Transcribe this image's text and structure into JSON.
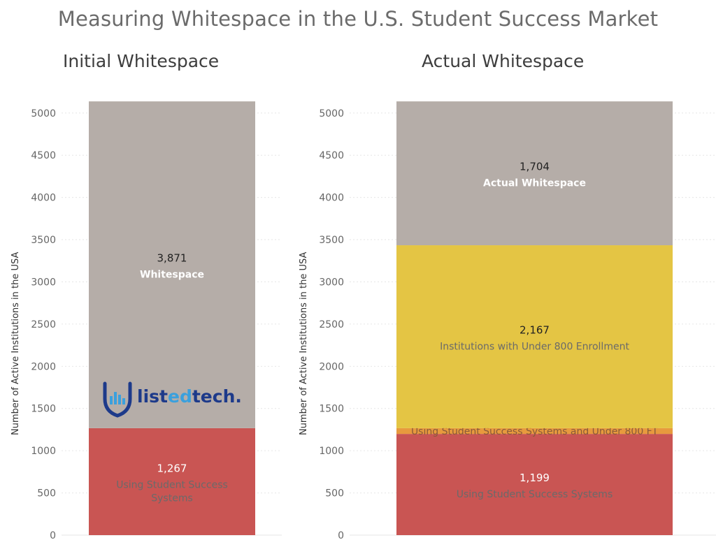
{
  "title": "Measuring Whitespace in the U.S. Student Success Market",
  "logo": {
    "part1": "list",
    "part2": "ed",
    "part3": "tech",
    "part4": "."
  },
  "colors": {
    "whitespace": "#b5ada8",
    "under800": "#e4c544",
    "overlap": "#e79a3e",
    "using": "#c95553"
  },
  "chart_data": [
    {
      "type": "bar",
      "title": "Initial Whitespace",
      "ylabel": "Number of Active Institutions in the USA",
      "ylim": [
        0,
        5200
      ],
      "yticks": [
        0,
        500,
        1000,
        1500,
        2000,
        2500,
        3000,
        3500,
        4000,
        4500,
        5000
      ],
      "stacked": true,
      "series": [
        {
          "name": "Using Student Success Systems",
          "value": 1267,
          "value_label": "1,267",
          "label_lines": [
            "Using Student Success",
            "Systems"
          ],
          "color": "#c95553"
        },
        {
          "name": "Whitespace",
          "value": 3871,
          "value_label": "3,871",
          "label_lines": [
            "Whitespace"
          ],
          "color": "#b5ada8"
        }
      ]
    },
    {
      "type": "bar",
      "title": "Actual Whitespace",
      "ylabel": "Number of Active Institutions in the USA",
      "ylim": [
        0,
        5200
      ],
      "yticks": [
        0,
        500,
        1000,
        1500,
        2000,
        2500,
        3000,
        3500,
        4000,
        4500,
        5000
      ],
      "stacked": true,
      "series": [
        {
          "name": "Using Student Success Systems",
          "value": 1199,
          "value_label": "1,199",
          "label_lines": [
            "Using Student Success Systems"
          ],
          "color": "#c95553"
        },
        {
          "name": "Using Student Success Systems and Under 800 FT",
          "value": 68,
          "value_label": "",
          "label_lines": [
            "Using Student Success Systems and Under 800 FT"
          ],
          "color": "#e79a3e"
        },
        {
          "name": "Institutions with Under 800 Enrollment",
          "value": 2167,
          "value_label": "2,167",
          "label_lines": [
            "Institutions with Under 800 Enrollment"
          ],
          "color": "#e4c544"
        },
        {
          "name": "Actual Whitespace",
          "value": 1704,
          "value_label": "1,704",
          "label_lines": [
            "Actual Whitespace"
          ],
          "color": "#b5ada8"
        }
      ]
    }
  ]
}
